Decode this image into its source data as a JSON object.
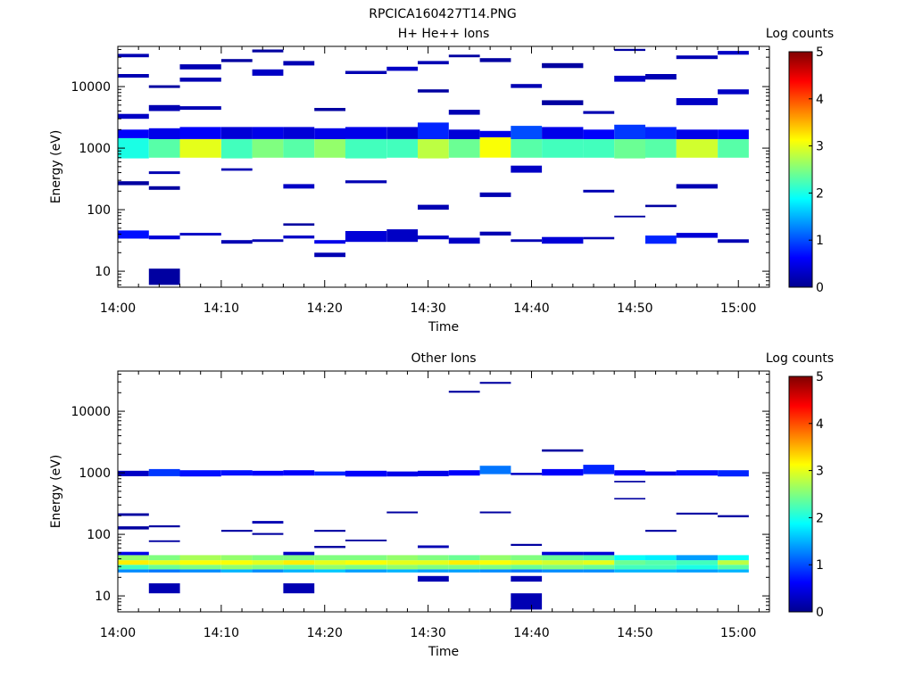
{
  "page_title": "RPCICA160427T14.PNG",
  "colorbar": {
    "label": "Log counts",
    "ticks": [
      "0",
      "1",
      "2",
      "3",
      "4",
      "5"
    ]
  },
  "chart_data": [
    {
      "type": "heatmap",
      "title": "H+ He++ Ions",
      "xlabel": "Time",
      "ylabel": "Energy (eV)",
      "yscale": "log",
      "ylim": [
        5.5,
        45000
      ],
      "xlim": [
        "14:00",
        "15:03"
      ],
      "xticks": [
        "14:00",
        "14:10",
        "14:20",
        "14:30",
        "14:40",
        "14:50",
        "15:00"
      ],
      "yticks": [
        "10",
        "100",
        "1000",
        "10000"
      ],
      "colorbar_range": [
        0,
        5
      ],
      "time_bins": [
        "14:00",
        "14:03",
        "14:06",
        "14:10",
        "14:13",
        "14:16",
        "14:19",
        "14:22",
        "14:26",
        "14:29",
        "14:32",
        "14:35",
        "14:38",
        "14:41",
        "14:45",
        "14:48",
        "14:51",
        "14:54",
        "14:58",
        "15:01"
      ],
      "cells": [
        [
          0,
          680,
          1450,
          2.0
        ],
        [
          0,
          1450,
          2000,
          0.6
        ],
        [
          0,
          34,
          46,
          0.7
        ],
        [
          0,
          3000,
          3600,
          0.3
        ],
        [
          0,
          14000,
          16000,
          0.2
        ],
        [
          0,
          30000,
          34000,
          0.2
        ],
        [
          0,
          250,
          290,
          0.1
        ],
        [
          1,
          700,
          1400,
          2.3
        ],
        [
          1,
          1400,
          2100,
          0.5
        ],
        [
          1,
          33,
          38,
          0.4
        ],
        [
          1,
          6,
          11,
          0.1
        ],
        [
          1,
          4000,
          5000,
          0.2
        ],
        [
          1,
          9500,
          10500,
          0.1
        ],
        [
          1,
          380,
          420,
          0.2
        ],
        [
          1,
          210,
          240,
          0.1
        ],
        [
          2,
          700,
          1400,
          3.0
        ],
        [
          2,
          1400,
          2200,
          0.6
        ],
        [
          2,
          38,
          42,
          0.3
        ],
        [
          2,
          19000,
          23000,
          0.2
        ],
        [
          2,
          12000,
          14000,
          0.2
        ],
        [
          2,
          4200,
          4800,
          0.2
        ],
        [
          3,
          680,
          1400,
          2.2
        ],
        [
          3,
          1400,
          2200,
          0.4
        ],
        [
          3,
          28,
          32,
          0.2
        ],
        [
          3,
          25000,
          28000,
          0.1
        ],
        [
          3,
          430,
          470,
          0.2
        ],
        [
          4,
          700,
          1400,
          2.5
        ],
        [
          4,
          1400,
          2200,
          0.5
        ],
        [
          4,
          30,
          33,
          0.2
        ],
        [
          4,
          15000,
          19000,
          0.3
        ],
        [
          4,
          36000,
          40000,
          0.1
        ],
        [
          5,
          700,
          1400,
          2.3
        ],
        [
          5,
          1400,
          2200,
          0.4
        ],
        [
          5,
          34,
          38,
          0.3
        ],
        [
          5,
          22000,
          26000,
          0.2
        ],
        [
          5,
          220,
          260,
          0.3
        ],
        [
          5,
          55,
          60,
          0.1
        ],
        [
          6,
          700,
          1400,
          2.6
        ],
        [
          6,
          1400,
          2100,
          0.5
        ],
        [
          6,
          28,
          32,
          0.5
        ],
        [
          6,
          17,
          20,
          0.2
        ],
        [
          6,
          4000,
          4500,
          0.1
        ],
        [
          7,
          680,
          1400,
          2.2
        ],
        [
          7,
          1400,
          2200,
          0.5
        ],
        [
          7,
          30,
          45,
          0.4
        ],
        [
          7,
          16000,
          18000,
          0.2
        ],
        [
          7,
          270,
          300,
          0.2
        ],
        [
          8,
          700,
          1400,
          2.2
        ],
        [
          8,
          1400,
          2200,
          0.4
        ],
        [
          8,
          30,
          48,
          0.3
        ],
        [
          8,
          18000,
          21000,
          0.3
        ],
        [
          9,
          680,
          1400,
          2.8
        ],
        [
          9,
          1400,
          2600,
          0.8
        ],
        [
          9,
          33,
          38,
          0.3
        ],
        [
          9,
          100,
          120,
          0.2
        ],
        [
          9,
          23000,
          26000,
          0.2
        ],
        [
          9,
          8000,
          9000,
          0.1
        ],
        [
          10,
          700,
          1400,
          2.4
        ],
        [
          10,
          1400,
          2000,
          0.4
        ],
        [
          10,
          28,
          35,
          0.3
        ],
        [
          10,
          3500,
          4200,
          0.2
        ],
        [
          10,
          30000,
          33000,
          0.1
        ],
        [
          11,
          700,
          1500,
          3.1
        ],
        [
          11,
          1500,
          1900,
          0.5
        ],
        [
          11,
          38,
          44,
          0.2
        ],
        [
          11,
          160,
          190,
          0.2
        ],
        [
          11,
          25000,
          29000,
          0.1
        ],
        [
          12,
          700,
          1400,
          2.3
        ],
        [
          12,
          1400,
          2300,
          1.0
        ],
        [
          12,
          30,
          33,
          0.2
        ],
        [
          12,
          400,
          520,
          0.3
        ],
        [
          12,
          9500,
          11000,
          0.2
        ],
        [
          13,
          700,
          1400,
          2.2
        ],
        [
          13,
          1400,
          2200,
          0.5
        ],
        [
          13,
          28,
          36,
          0.4
        ],
        [
          13,
          5000,
          6000,
          0.1
        ],
        [
          13,
          20000,
          24000,
          0.1
        ],
        [
          14,
          700,
          1400,
          2.2
        ],
        [
          14,
          1400,
          2000,
          0.6
        ],
        [
          14,
          33,
          36,
          0.2
        ],
        [
          14,
          190,
          210,
          0.2
        ],
        [
          14,
          3600,
          4000,
          0.2
        ],
        [
          15,
          680,
          1400,
          2.4
        ],
        [
          15,
          1400,
          2400,
          0.9
        ],
        [
          15,
          12000,
          15000,
          0.3
        ],
        [
          15,
          75,
          80,
          0.1
        ],
        [
          15,
          38000,
          41000,
          0.1
        ],
        [
          16,
          700,
          1400,
          2.3
        ],
        [
          16,
          1400,
          2200,
          0.8
        ],
        [
          16,
          28,
          38,
          0.8
        ],
        [
          16,
          110,
          120,
          0.1
        ],
        [
          16,
          13000,
          16000,
          0.2
        ],
        [
          17,
          700,
          1400,
          2.9
        ],
        [
          17,
          1400,
          2000,
          0.5
        ],
        [
          17,
          35,
          42,
          0.4
        ],
        [
          17,
          220,
          260,
          0.2
        ],
        [
          17,
          5000,
          6500,
          0.3
        ],
        [
          17,
          28000,
          32000,
          0.2
        ],
        [
          18,
          700,
          1400,
          2.3
        ],
        [
          18,
          1400,
          2000,
          0.6
        ],
        [
          18,
          29,
          33,
          0.2
        ],
        [
          18,
          7500,
          9000,
          0.3
        ],
        [
          18,
          33000,
          38000,
          0.3
        ]
      ]
    },
    {
      "type": "heatmap",
      "title": "Other Ions",
      "xlabel": "Time",
      "ylabel": "Energy (eV)",
      "yscale": "log",
      "ylim": [
        5.5,
        45000
      ],
      "xlim": [
        "14:00",
        "15:03"
      ],
      "xticks": [
        "14:00",
        "14:10",
        "14:20",
        "14:30",
        "14:40",
        "14:50",
        "15:00"
      ],
      "yticks": [
        "10",
        "100",
        "1000",
        "10000"
      ],
      "colorbar_range": [
        0,
        5
      ],
      "cells": [
        [
          0,
          24,
          27,
          1.3
        ],
        [
          0,
          27,
          32,
          2.2
        ],
        [
          0,
          32,
          38,
          3.2
        ],
        [
          0,
          38,
          46,
          2.6
        ],
        [
          0,
          46,
          52,
          0.5
        ],
        [
          0,
          880,
          1080,
          0.3
        ],
        [
          0,
          200,
          220,
          0.1
        ],
        [
          0,
          120,
          135,
          0.1
        ],
        [
          1,
          24,
          27,
          1.2
        ],
        [
          1,
          27,
          32,
          2.4
        ],
        [
          1,
          32,
          38,
          3.0
        ],
        [
          1,
          38,
          46,
          2.5
        ],
        [
          1,
          880,
          1150,
          0.9
        ],
        [
          1,
          11,
          16,
          0.2
        ],
        [
          1,
          75,
          80,
          0.1
        ],
        [
          1,
          130,
          140,
          0.1
        ],
        [
          2,
          24,
          27,
          1.3
        ],
        [
          2,
          27,
          32,
          2.5
        ],
        [
          2,
          32,
          38,
          3.1
        ],
        [
          2,
          38,
          46,
          2.7
        ],
        [
          2,
          870,
          1100,
          0.7
        ],
        [
          3,
          24,
          27,
          1.5
        ],
        [
          3,
          27,
          32,
          2.6
        ],
        [
          3,
          32,
          38,
          3.1
        ],
        [
          3,
          38,
          46,
          2.6
        ],
        [
          3,
          900,
          1100,
          0.7
        ],
        [
          3,
          110,
          118,
          0.1
        ],
        [
          4,
          24,
          27,
          1.3
        ],
        [
          4,
          27,
          32,
          2.5
        ],
        [
          4,
          32,
          38,
          3.0
        ],
        [
          4,
          38,
          46,
          2.5
        ],
        [
          4,
          900,
          1080,
          0.6
        ],
        [
          4,
          150,
          165,
          0.2
        ],
        [
          4,
          98,
          105,
          0.1
        ],
        [
          5,
          24,
          27,
          1.5
        ],
        [
          5,
          27,
          32,
          2.4
        ],
        [
          5,
          32,
          38,
          3.2
        ],
        [
          5,
          38,
          46,
          2.5
        ],
        [
          5,
          46,
          52,
          0.3
        ],
        [
          5,
          900,
          1100,
          0.6
        ],
        [
          5,
          11,
          16,
          0.2
        ],
        [
          6,
          24,
          27,
          1.6
        ],
        [
          6,
          27,
          32,
          2.6
        ],
        [
          6,
          32,
          38,
          3.0
        ],
        [
          6,
          38,
          46,
          2.5
        ],
        [
          6,
          900,
          1050,
          0.8
        ],
        [
          6,
          60,
          65,
          0.1
        ],
        [
          6,
          110,
          118,
          0.1
        ],
        [
          7,
          24,
          27,
          1.4
        ],
        [
          7,
          27,
          32,
          2.5
        ],
        [
          7,
          32,
          38,
          3.1
        ],
        [
          7,
          38,
          46,
          2.5
        ],
        [
          7,
          870,
          1080,
          0.6
        ],
        [
          7,
          77,
          82,
          0.1
        ],
        [
          8,
          24,
          27,
          1.5
        ],
        [
          8,
          27,
          32,
          2.6
        ],
        [
          8,
          32,
          38,
          3.0
        ],
        [
          8,
          38,
          46,
          2.6
        ],
        [
          8,
          870,
          1050,
          0.5
        ],
        [
          8,
          220,
          235,
          0.1
        ],
        [
          9,
          24,
          27,
          1.4
        ],
        [
          9,
          27,
          32,
          2.5
        ],
        [
          9,
          32,
          38,
          3.0
        ],
        [
          9,
          38,
          46,
          2.5
        ],
        [
          9,
          880,
          1080,
          0.5
        ],
        [
          9,
          17,
          21,
          0.2
        ],
        [
          9,
          60,
          66,
          0.2
        ],
        [
          10,
          24,
          27,
          1.4
        ],
        [
          10,
          27,
          32,
          2.5
        ],
        [
          10,
          32,
          38,
          3.2
        ],
        [
          10,
          38,
          46,
          2.4
        ],
        [
          10,
          900,
          1100,
          0.6
        ],
        [
          10,
          20000,
          21500,
          0.1
        ],
        [
          11,
          24,
          27,
          1.3
        ],
        [
          11,
          27,
          32,
          2.5
        ],
        [
          11,
          32,
          38,
          3.1
        ],
        [
          11,
          38,
          46,
          2.6
        ],
        [
          11,
          950,
          1300,
          1.2
        ],
        [
          11,
          28000,
          30000,
          0.1
        ],
        [
          11,
          220,
          235,
          0.1
        ],
        [
          12,
          24,
          27,
          1.2
        ],
        [
          12,
          27,
          32,
          2.4
        ],
        [
          12,
          32,
          38,
          3.0
        ],
        [
          12,
          38,
          46,
          2.5
        ],
        [
          12,
          920,
          1000,
          0.3
        ],
        [
          12,
          6,
          11,
          0.2
        ],
        [
          12,
          17,
          21,
          0.2
        ],
        [
          12,
          65,
          70,
          0.1
        ],
        [
          13,
          24,
          27,
          1.3
        ],
        [
          13,
          27,
          32,
          2.5
        ],
        [
          13,
          32,
          38,
          2.9
        ],
        [
          13,
          38,
          46,
          2.4
        ],
        [
          13,
          46,
          52,
          0.4
        ],
        [
          13,
          900,
          1150,
          0.6
        ],
        [
          13,
          2200,
          2400,
          0.1
        ],
        [
          14,
          24,
          27,
          1.3
        ],
        [
          14,
          27,
          32,
          2.4
        ],
        [
          14,
          32,
          38,
          3.0
        ],
        [
          14,
          38,
          46,
          2.3
        ],
        [
          14,
          46,
          52,
          0.4
        ],
        [
          14,
          950,
          1350,
          0.8
        ],
        [
          15,
          24,
          27,
          1.5
        ],
        [
          15,
          27,
          32,
          2.2
        ],
        [
          15,
          32,
          38,
          2.4
        ],
        [
          15,
          38,
          46,
          1.9
        ],
        [
          15,
          900,
          1100,
          0.6
        ],
        [
          15,
          370,
          390,
          0.1
        ],
        [
          15,
          700,
          740,
          0.1
        ],
        [
          16,
          24,
          27,
          1.5
        ],
        [
          16,
          27,
          32,
          2.2
        ],
        [
          16,
          32,
          38,
          2.3
        ],
        [
          16,
          38,
          46,
          1.8
        ],
        [
          16,
          900,
          1050,
          0.5
        ],
        [
          16,
          110,
          118,
          0.1
        ],
        [
          17,
          24,
          27,
          1.4
        ],
        [
          17,
          27,
          32,
          2.0
        ],
        [
          17,
          32,
          38,
          2.2
        ],
        [
          17,
          38,
          46,
          1.4
        ],
        [
          17,
          900,
          1100,
          0.7
        ],
        [
          17,
          210,
          225,
          0.1
        ],
        [
          18,
          24,
          27,
          1.5
        ],
        [
          18,
          27,
          32,
          2.3
        ],
        [
          18,
          32,
          38,
          2.8
        ],
        [
          18,
          38,
          46,
          1.9
        ],
        [
          18,
          870,
          1100,
          0.8
        ],
        [
          18,
          190,
          205,
          0.1
        ]
      ]
    }
  ]
}
